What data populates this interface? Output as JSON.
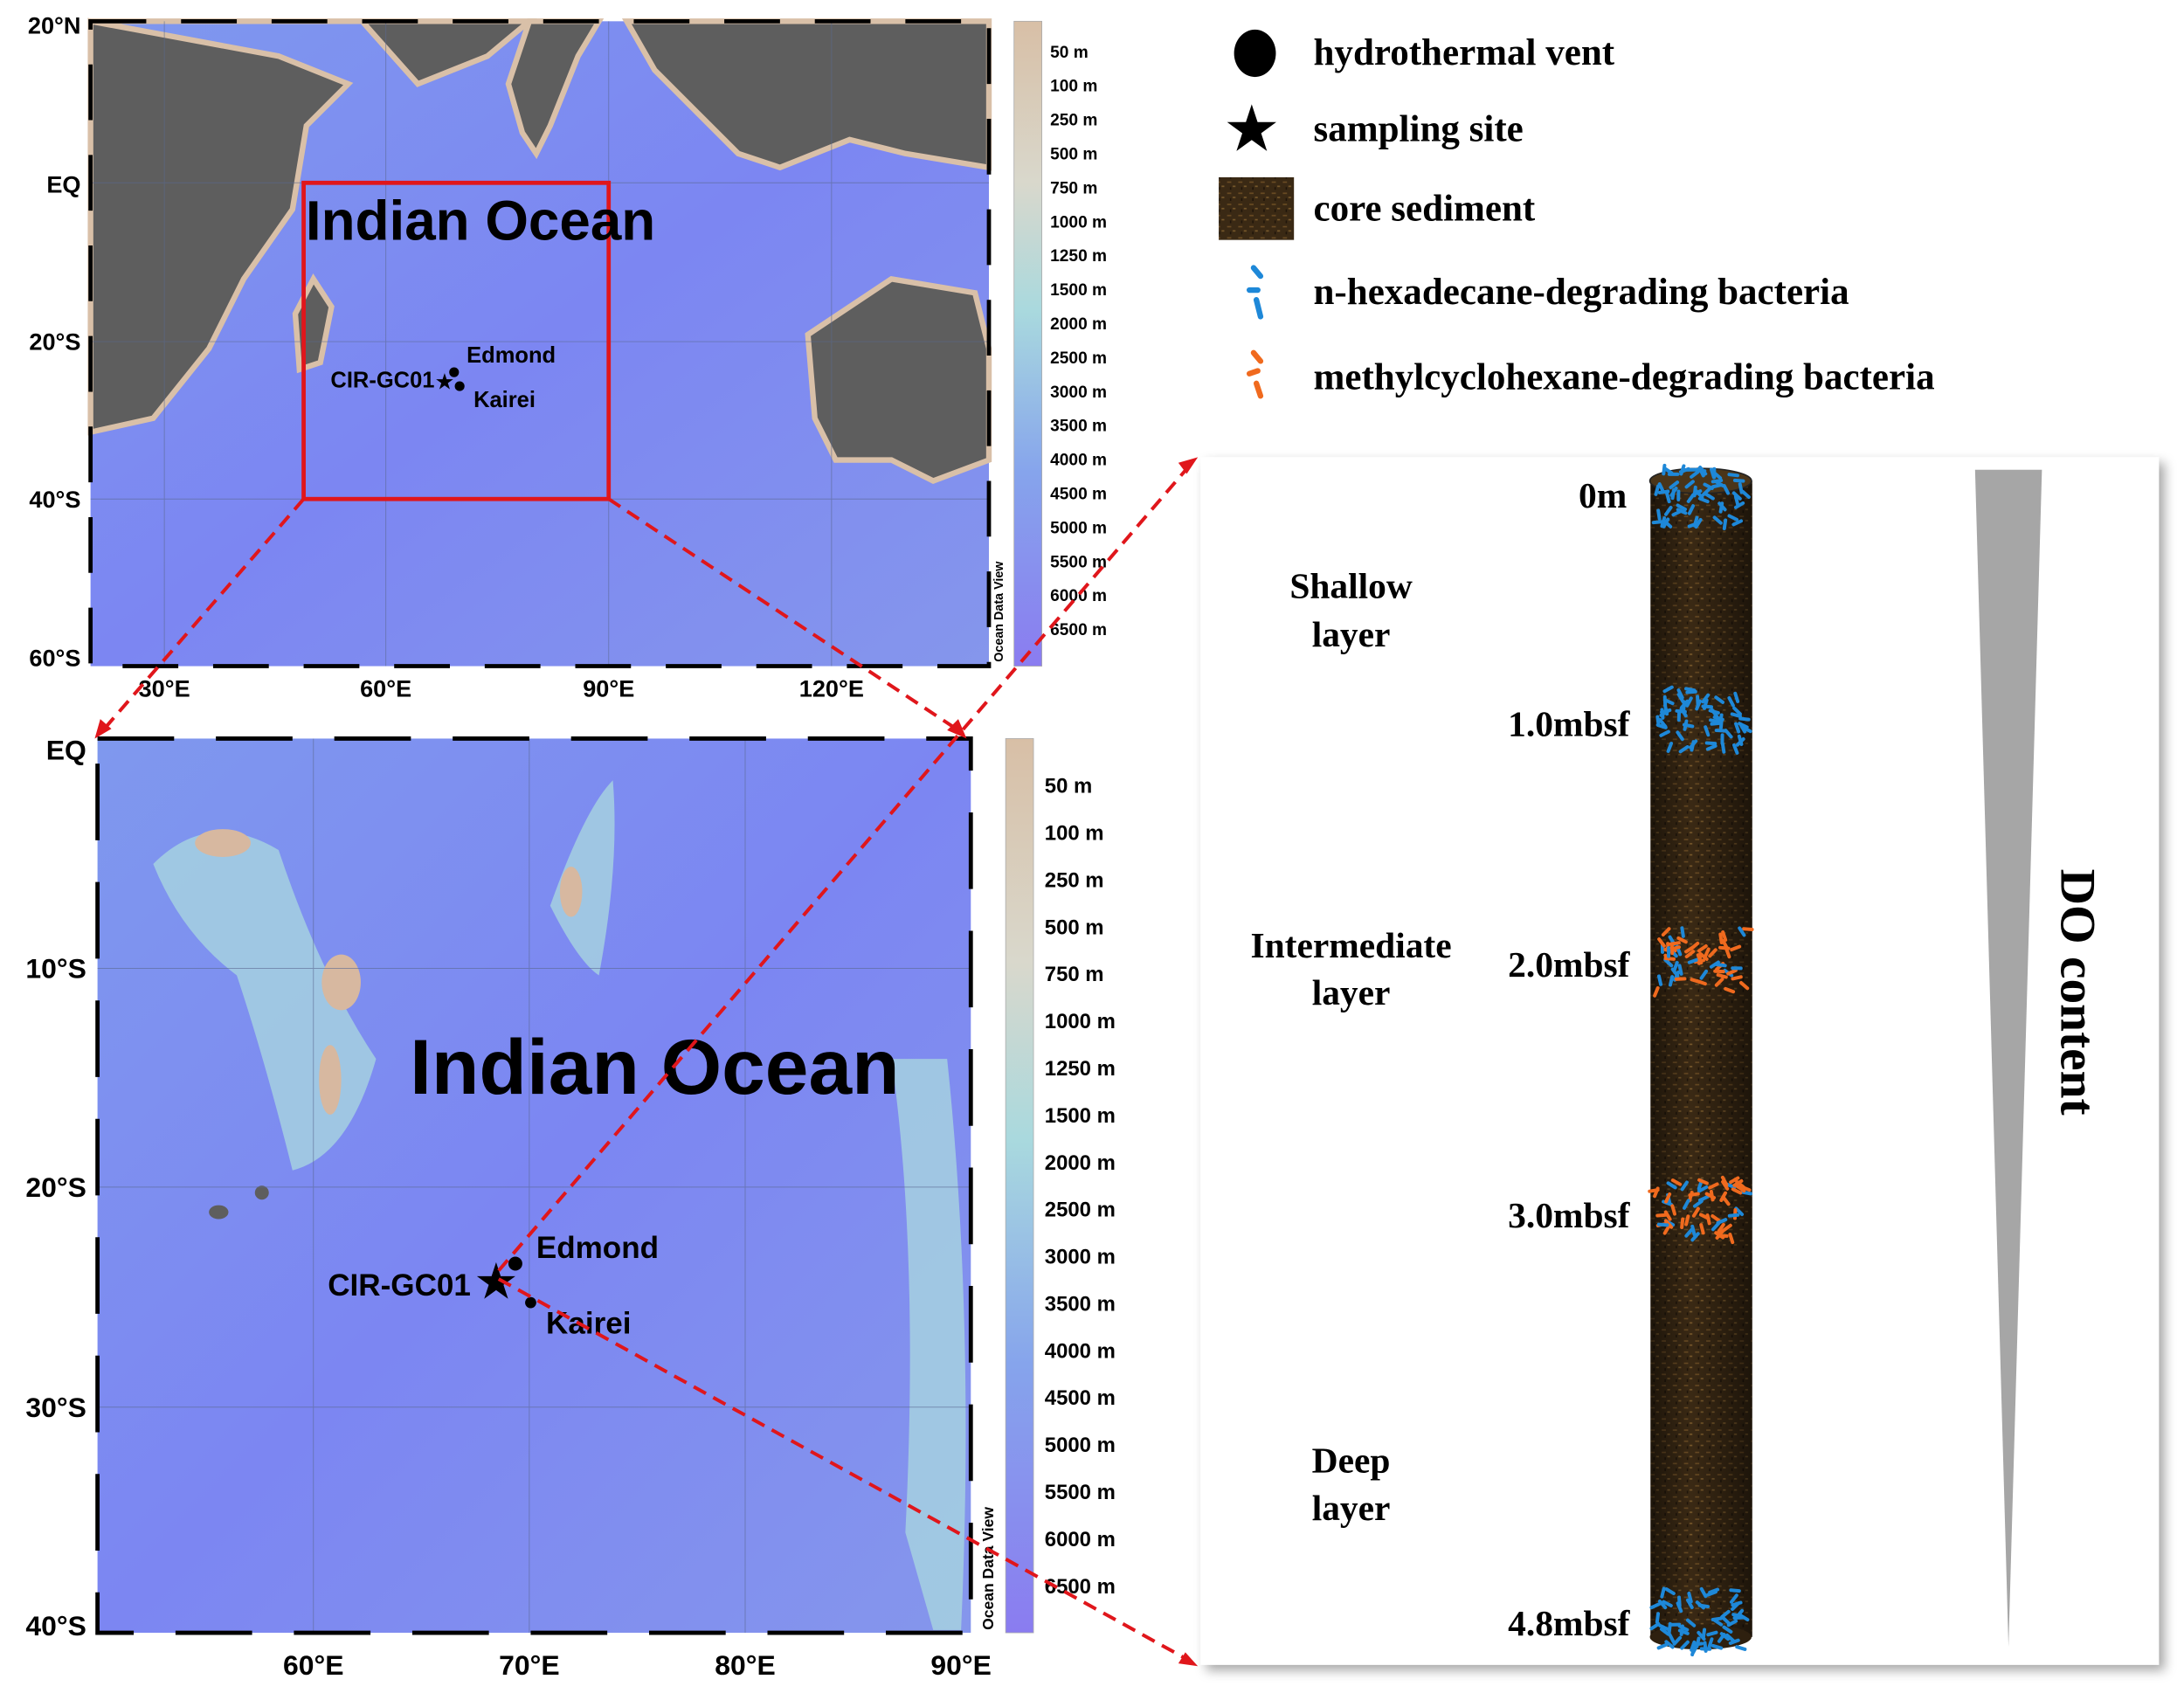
{
  "legend": {
    "items": [
      {
        "icon": "circle-icon",
        "label": "hydrothermal vent"
      },
      {
        "icon": "star-icon",
        "label": "sampling site"
      },
      {
        "icon": "sediment-swatch-icon",
        "label": "core sediment"
      },
      {
        "icon": "blue-bacteria-icon",
        "label": "n-hexadecane-degrading bacteria",
        "color": "#1e88d8"
      },
      {
        "icon": "orange-bacteria-icon",
        "label": "methylcyclohexane-degrading bacteria",
        "color": "#f06a1e"
      }
    ]
  },
  "top_map": {
    "title": "Indian Ocean",
    "lat_ticks": [
      "20°N",
      "EQ",
      "20°S",
      "40°S",
      "60°S"
    ],
    "lon_ticks": [
      "30°E",
      "60°E",
      "90°E",
      "120°E"
    ],
    "site": "CIR-GC01",
    "vents": [
      "Edmond",
      "Kairei"
    ],
    "watermark": "Ocean Data View",
    "box_color": "#e0161b"
  },
  "bottom_map": {
    "title": "Indian Ocean",
    "lat_ticks": [
      "EQ",
      "10°S",
      "20°S",
      "30°S",
      "40°S"
    ],
    "lon_ticks": [
      "60°E",
      "70°E",
      "80°E",
      "90°E"
    ],
    "site": "CIR-GC01",
    "vents": [
      "Edmond",
      "Kairei"
    ],
    "watermark": "Ocean Data View"
  },
  "colorbar": {
    "labels": [
      "50 m",
      "100 m",
      "250 m",
      "500 m",
      "750 m",
      "1000 m",
      "1250 m",
      "1500 m",
      "2000 m",
      "2500 m",
      "3000 m",
      "3500 m",
      "4000 m",
      "4500 m",
      "5000 m",
      "5500 m",
      "6000 m",
      "6500 m"
    ]
  },
  "core": {
    "depths": [
      "0m",
      "1.0mbsf",
      "2.0mbsf",
      "3.0mbsf",
      "4.8mbsf"
    ],
    "layers": [
      {
        "line1": "Shallow",
        "line2": "layer"
      },
      {
        "line1": "Intermediate",
        "line2": "layer"
      },
      {
        "line1": "Deep",
        "line2": "layer"
      }
    ],
    "gradient_label": "DO content"
  },
  "colors": {
    "land": "#5e5e5e",
    "ocean": "#7d8cf2",
    "shelf": "#d9c0a8",
    "arrow": "#e0161b",
    "core": "#3b2a16"
  }
}
